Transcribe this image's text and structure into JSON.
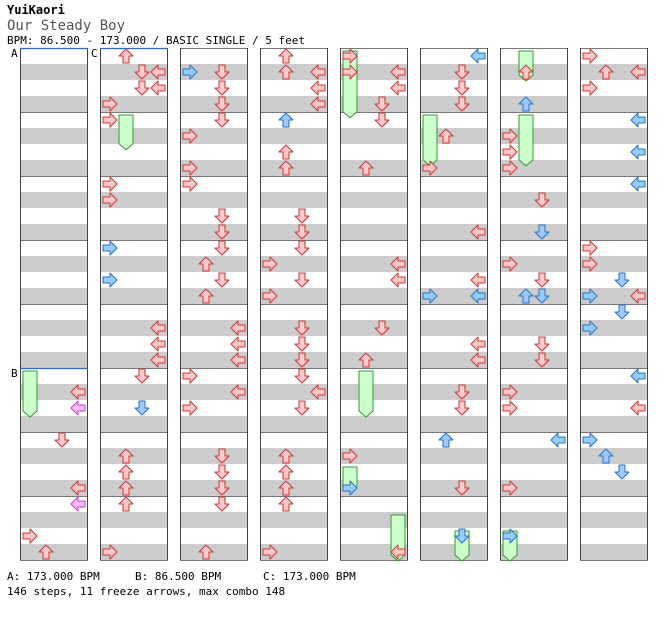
{
  "song": {
    "artist": "YuiKaori",
    "title": "Our Steady Boy",
    "bpm_line": "BPM: 86.500 - 173.000 / BASIC SINGLE / 5 feet"
  },
  "markers": [
    {
      "label": "A",
      "column": 0,
      "beat": 0
    },
    {
      "label": "C",
      "column": 1,
      "beat": 0
    },
    {
      "label": "B",
      "column": 0,
      "beat": 20
    }
  ],
  "footer": {
    "bpm_a": "A: 173.000 BPM",
    "bpm_b": "B: 86.500 BPM",
    "bpm_c": "C: 173.000 BPM",
    "stats": "146 steps, 11 freeze arrows, max combo 148"
  },
  "colors": {
    "stripe": "#cccccc",
    "red_fill": "#ffc8c8",
    "red_stroke": "#cc3333",
    "blue_fill": "#99ccff",
    "blue_stroke": "#2a6fc0",
    "pink_fill": "#ffbbff",
    "pink_stroke": "#bb44bb",
    "freeze_fill": "#ccffcc",
    "freeze_stroke": "#339933"
  },
  "chart_data": {
    "type": "step-chart",
    "columns": 8,
    "beats_per_column": 32,
    "lanes": [
      "left",
      "down",
      "up",
      "right"
    ],
    "notes": [
      [
        1,
        1,
        3,
        "red"
      ],
      [
        1,
        2,
        3,
        "red"
      ],
      [
        1,
        3,
        0,
        "red"
      ],
      [
        1,
        4,
        0,
        "red"
      ],
      [
        1,
        8,
        0,
        "red"
      ],
      [
        1,
        9,
        0,
        "red"
      ],
      [
        1,
        12,
        0,
        "blue"
      ],
      [
        1,
        14,
        0,
        "blue"
      ],
      [
        1,
        17,
        3,
        "red"
      ],
      [
        1,
        18,
        3,
        "red"
      ],
      [
        1,
        19,
        3,
        "red"
      ],
      [
        2,
        1,
        2,
        "red"
      ],
      [
        2,
        2,
        2,
        "red"
      ],
      [
        2,
        3,
        2,
        "red"
      ],
      [
        2,
        4,
        2,
        "red"
      ],
      [
        2,
        5,
        0,
        "red"
      ],
      [
        2,
        7,
        0,
        "red"
      ],
      [
        2,
        8,
        0,
        "red"
      ],
      [
        2,
        10,
        2,
        "red"
      ],
      [
        2,
        11,
        2,
        "red"
      ],
      [
        2,
        12,
        2,
        "red"
      ],
      [
        2,
        13,
        1,
        "red"
      ],
      [
        2,
        14,
        2,
        "red"
      ],
      [
        2,
        15,
        1,
        "red"
      ],
      [
        2,
        17,
        3,
        "red"
      ],
      [
        2,
        18,
        3,
        "red"
      ],
      [
        2,
        19,
        3,
        "red"
      ],
      [
        3,
        1,
        3,
        "red"
      ],
      [
        3,
        2,
        3,
        "red"
      ],
      [
        3,
        3,
        3,
        "red"
      ],
      [
        3,
        4,
        1,
        "blue"
      ],
      [
        3,
        6,
        1,
        "red"
      ],
      [
        3,
        7,
        1,
        "red"
      ],
      [
        3,
        10,
        2,
        "red"
      ],
      [
        3,
        11,
        2,
        "red"
      ],
      [
        3,
        12,
        2,
        "red"
      ],
      [
        3,
        13,
        0,
        "red"
      ],
      [
        3,
        14,
        2,
        "red"
      ],
      [
        3,
        15,
        0,
        "red"
      ],
      [
        3,
        17,
        2,
        "red"
      ],
      [
        3,
        18,
        2,
        "red"
      ],
      [
        3,
        19,
        2,
        "red"
      ],
      [
        4,
        1,
        3,
        "red"
      ],
      [
        4,
        2,
        3,
        "red"
      ],
      [
        4,
        3,
        2,
        "red"
      ],
      [
        4,
        4,
        2,
        "red"
      ],
      [
        4,
        7,
        1,
        "red"
      ],
      [
        4,
        13,
        3,
        "red"
      ],
      [
        4,
        14,
        3,
        "red"
      ],
      [
        4,
        17,
        2,
        "red"
      ],
      [
        4,
        19,
        1,
        "red"
      ],
      [
        5,
        1,
        2,
        "red"
      ],
      [
        5,
        2,
        2,
        "red"
      ],
      [
        5,
        3,
        2,
        "red"
      ],
      [
        5,
        5,
        1,
        "red"
      ],
      [
        5,
        7,
        0,
        "red"
      ],
      [
        5,
        11,
        3,
        "red"
      ],
      [
        5,
        14,
        3,
        "red"
      ],
      [
        5,
        15,
        0,
        "blue"
      ],
      [
        5,
        15,
        3,
        "blue"
      ],
      [
        5,
        18,
        3,
        "red"
      ],
      [
        5,
        19,
        3,
        "red"
      ],
      [
        6,
        5,
        0,
        "red"
      ],
      [
        6,
        6,
        0,
        "red"
      ],
      [
        6,
        7,
        0,
        "red"
      ],
      [
        6,
        9,
        2,
        "red"
      ],
      [
        6,
        11,
        2,
        "blue"
      ],
      [
        6,
        13,
        0,
        "red"
      ],
      [
        6,
        14,
        2,
        "red"
      ],
      [
        6,
        15,
        1,
        "blue"
      ],
      [
        6,
        15,
        2,
        "blue"
      ],
      [
        6,
        18,
        2,
        "red"
      ],
      [
        6,
        19,
        2,
        "red"
      ],
      [
        7,
        0,
        0,
        "red"
      ],
      [
        7,
        1,
        1,
        "red"
      ],
      [
        7,
        2,
        0,
        "red"
      ],
      [
        7,
        4,
        3,
        "blue"
      ],
      [
        7,
        6,
        3,
        "blue"
      ],
      [
        7,
        8,
        3,
        "blue"
      ],
      [
        7,
        12,
        0,
        "red"
      ],
      [
        7,
        13,
        0,
        "red"
      ],
      [
        7,
        14,
        2,
        "blue"
      ],
      [
        7,
        15,
        3,
        "red"
      ],
      [
        7,
        15,
        0,
        "blue"
      ],
      [
        7,
        16,
        2,
        "blue"
      ],
      [
        7,
        17,
        0,
        "blue"
      ],
      [
        0,
        21,
        3,
        "red"
      ],
      [
        0,
        22,
        3,
        "pink"
      ],
      [
        0,
        24,
        2,
        "red"
      ],
      [
        0,
        27,
        3,
        "red"
      ],
      [
        0,
        28,
        3,
        "pink"
      ],
      [
        0,
        30,
        0,
        "red"
      ],
      [
        0,
        31,
        1,
        "red"
      ],
      [
        0,
        32,
        1,
        "red"
      ],
      [
        0,
        33,
        2,
        "red"
      ],
      [
        0,
        34,
        2,
        "red"
      ],
      [
        1,
        20,
        2,
        "red"
      ],
      [
        1,
        22,
        2,
        "blue"
      ],
      [
        1,
        25,
        1,
        "red"
      ],
      [
        1,
        26,
        1,
        "red"
      ],
      [
        1,
        27,
        1,
        "red"
      ],
      [
        1,
        28,
        1,
        "red"
      ],
      [
        1,
        31,
        0,
        "red"
      ],
      [
        1,
        33,
        0,
        "blue"
      ],
      [
        2,
        20,
        0,
        "red"
      ],
      [
        2,
        21,
        3,
        "red"
      ],
      [
        2,
        22,
        0,
        "red"
      ],
      [
        2,
        25,
        2,
        "red"
      ],
      [
        2,
        26,
        2,
        "red"
      ],
      [
        2,
        27,
        2,
        "red"
      ],
      [
        2,
        28,
        2,
        "red"
      ],
      [
        2,
        31,
        1,
        "red"
      ],
      [
        2,
        32,
        1,
        "red"
      ],
      [
        2,
        33,
        1,
        "red"
      ],
      [
        3,
        20,
        2,
        "red"
      ],
      [
        3,
        21,
        3,
        "red"
      ],
      [
        3,
        22,
        2,
        "red"
      ],
      [
        3,
        25,
        1,
        "red"
      ],
      [
        3,
        26,
        1,
        "red"
      ],
      [
        3,
        27,
        1,
        "red"
      ],
      [
        3,
        28,
        1,
        "red"
      ],
      [
        3,
        31,
        0,
        "red"
      ],
      [
        3,
        32,
        0,
        "red"
      ],
      [
        3,
        33,
        0,
        "red"
      ],
      [
        4,
        25,
        0,
        "red"
      ],
      [
        4,
        27,
        0,
        "blue"
      ],
      [
        4,
        31,
        3,
        "red"
      ],
      [
        4,
        32,
        3,
        "blue"
      ],
      [
        5,
        21,
        2,
        "red"
      ],
      [
        5,
        22,
        2,
        "red"
      ],
      [
        5,
        24,
        1,
        "blue"
      ],
      [
        5,
        27,
        2,
        "red"
      ],
      [
        5,
        30,
        2,
        "blue"
      ],
      [
        5,
        33,
        1,
        "red"
      ],
      [
        5,
        35,
        1,
        "blue"
      ],
      [
        6,
        21,
        0,
        "red"
      ],
      [
        6,
        22,
        0,
        "red"
      ],
      [
        6,
        24,
        3,
        "blue"
      ],
      [
        6,
        27,
        0,
        "red"
      ],
      [
        6,
        30,
        0,
        "blue"
      ],
      [
        6,
        33,
        3,
        "red"
      ],
      [
        7,
        20,
        3,
        "blue"
      ],
      [
        7,
        22,
        3,
        "red"
      ],
      [
        7,
        24,
        0,
        "blue"
      ],
      [
        7,
        25,
        1,
        "blue"
      ],
      [
        7,
        26,
        2,
        "blue"
      ]
    ],
    "freezes": [
      [
        0,
        20,
        22.5,
        0
      ],
      [
        1,
        4,
        5.8,
        1
      ],
      [
        4,
        0,
        3.8,
        0
      ],
      [
        4,
        20,
        22.5,
        1
      ],
      [
        4,
        26,
        27.2,
        0
      ],
      [
        4,
        29,
        31.5,
        3
      ],
      [
        5,
        4,
        6.8,
        0
      ],
      [
        5,
        30,
        31.5,
        2
      ],
      [
        6,
        0,
        1.5,
        1
      ],
      [
        6,
        4,
        6.8,
        1
      ],
      [
        6,
        30,
        31.5,
        0
      ]
    ]
  }
}
